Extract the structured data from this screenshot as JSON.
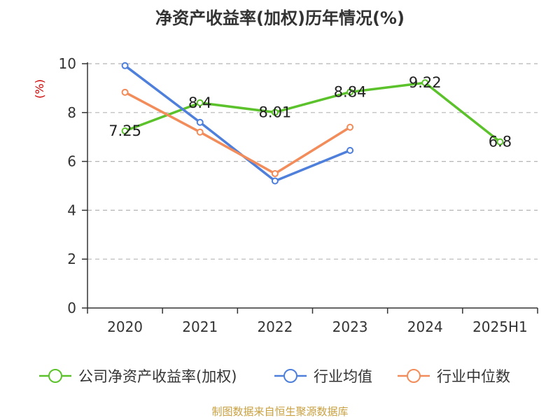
{
  "chart_data": {
    "type": "line",
    "title": "净资产收益率(加权)历年情况(%)",
    "ylabel": "(%)",
    "ylim": [
      0,
      10
    ],
    "yticks": [
      0,
      2,
      4,
      6,
      8,
      10
    ],
    "categories": [
      "2020",
      "2021",
      "2022",
      "2023",
      "2024",
      "2025H1"
    ],
    "grid": "horizontal dashed",
    "legend_position": "bottom",
    "series": [
      {
        "name": "公司净资产收益率(加权)",
        "color": "#5cc22c",
        "values": [
          7.25,
          8.4,
          8.01,
          8.84,
          9.22,
          6.8
        ],
        "labels": [
          "7.25",
          "8.4",
          "8.01",
          "8.84",
          "9.22",
          "6.8"
        ]
      },
      {
        "name": "行业均值",
        "color": "#4e7fdb",
        "values": [
          9.92,
          7.6,
          5.2,
          6.45,
          null,
          null
        ]
      },
      {
        "name": "行业中位数",
        "color": "#f28c5a",
        "values": [
          8.83,
          7.2,
          5.5,
          7.4,
          null,
          null
        ]
      }
    ],
    "source": "制图数据来自恒生聚源数据库"
  }
}
